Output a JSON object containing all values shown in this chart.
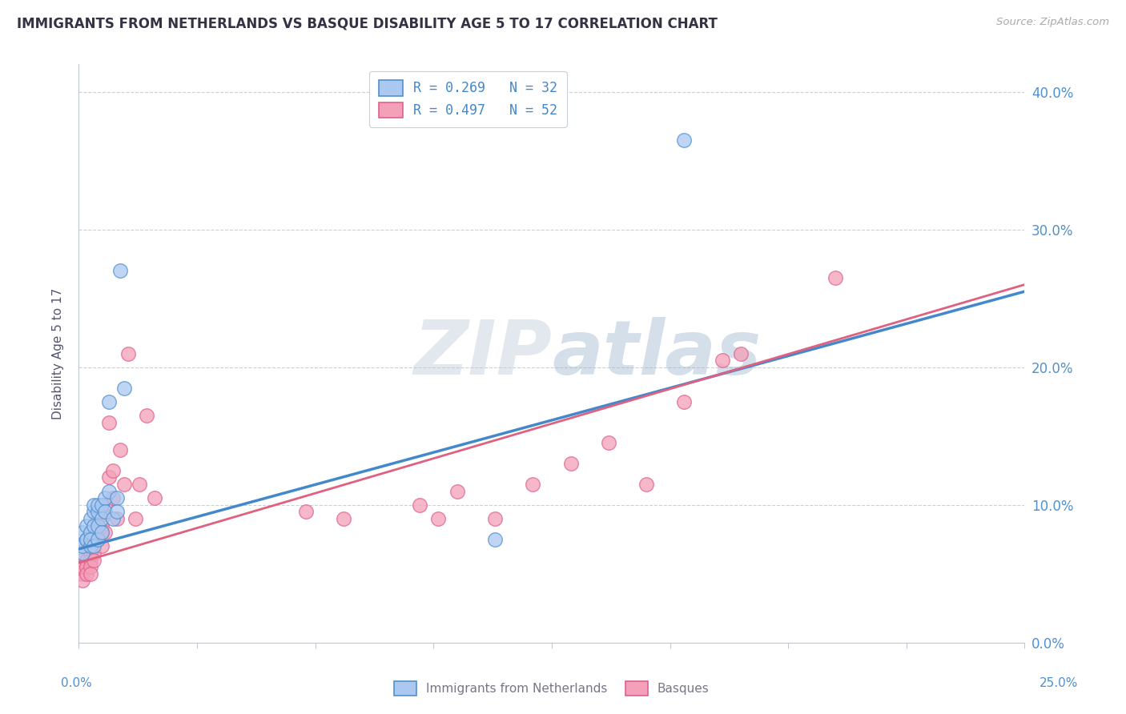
{
  "title": "IMMIGRANTS FROM NETHERLANDS VS BASQUE DISABILITY AGE 5 TO 17 CORRELATION CHART",
  "source": "Source: ZipAtlas.com",
  "ylabel": "Disability Age 5 to 17",
  "yticks": [
    "0.0%",
    "10.0%",
    "20.0%",
    "30.0%",
    "40.0%"
  ],
  "legend_blue": "R = 0.269   N = 32",
  "legend_pink": "R = 0.497   N = 52",
  "legend_label_blue": "Immigrants from Netherlands",
  "legend_label_pink": "Basques",
  "blue_color": "#aac8f0",
  "blue_edge": "#5090d0",
  "pink_color": "#f4a0b8",
  "pink_edge": "#e06090",
  "trendline_blue_color": "#4488cc",
  "trendline_pink_color": "#e06080",
  "watermark_color": "#c8d8f0",
  "blue_scatter_x": [
    0.001,
    0.001,
    0.001,
    0.002,
    0.002,
    0.002,
    0.003,
    0.003,
    0.003,
    0.003,
    0.004,
    0.004,
    0.004,
    0.004,
    0.005,
    0.005,
    0.005,
    0.005,
    0.006,
    0.006,
    0.006,
    0.007,
    0.007,
    0.008,
    0.008,
    0.009,
    0.01,
    0.01,
    0.011,
    0.012,
    0.11,
    0.16
  ],
  "blue_scatter_y": [
    0.065,
    0.08,
    0.07,
    0.075,
    0.085,
    0.075,
    0.07,
    0.09,
    0.08,
    0.075,
    0.095,
    0.085,
    0.1,
    0.07,
    0.095,
    0.1,
    0.085,
    0.075,
    0.1,
    0.09,
    0.08,
    0.105,
    0.095,
    0.11,
    0.175,
    0.09,
    0.105,
    0.095,
    0.27,
    0.185,
    0.075,
    0.365
  ],
  "pink_scatter_x": [
    0.001,
    0.001,
    0.001,
    0.001,
    0.002,
    0.002,
    0.002,
    0.002,
    0.003,
    0.003,
    0.003,
    0.003,
    0.003,
    0.004,
    0.004,
    0.004,
    0.004,
    0.005,
    0.005,
    0.005,
    0.006,
    0.006,
    0.006,
    0.006,
    0.007,
    0.007,
    0.008,
    0.008,
    0.009,
    0.009,
    0.01,
    0.011,
    0.012,
    0.013,
    0.015,
    0.016,
    0.018,
    0.02,
    0.06,
    0.07,
    0.09,
    0.095,
    0.1,
    0.11,
    0.12,
    0.13,
    0.14,
    0.15,
    0.16,
    0.17,
    0.175,
    0.2
  ],
  "pink_scatter_y": [
    0.05,
    0.06,
    0.055,
    0.045,
    0.07,
    0.06,
    0.055,
    0.05,
    0.08,
    0.065,
    0.06,
    0.055,
    0.05,
    0.075,
    0.065,
    0.08,
    0.06,
    0.08,
    0.075,
    0.09,
    0.085,
    0.095,
    0.08,
    0.07,
    0.1,
    0.08,
    0.16,
    0.12,
    0.105,
    0.125,
    0.09,
    0.14,
    0.115,
    0.21,
    0.09,
    0.115,
    0.165,
    0.105,
    0.095,
    0.09,
    0.1,
    0.09,
    0.11,
    0.09,
    0.115,
    0.13,
    0.145,
    0.115,
    0.175,
    0.205,
    0.21,
    0.265
  ],
  "xlim": [
    0.0,
    0.25
  ],
  "ylim": [
    0.0,
    0.42
  ],
  "blue_trend_x": [
    0.0,
    0.25
  ],
  "blue_trend_y": [
    0.068,
    0.255
  ],
  "pink_trend_x": [
    0.0,
    0.25
  ],
  "pink_trend_y": [
    0.058,
    0.26
  ]
}
